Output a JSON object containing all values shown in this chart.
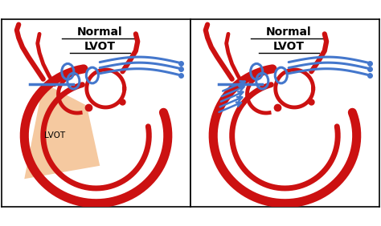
{
  "bg_color": "#ffffff",
  "red": "#cc1111",
  "blue": "#4477cc",
  "lvot_fill": "#f5c9a0",
  "title_line1": "Normal",
  "title_line2": "LVOT",
  "label_lvot": "LVOT",
  "title_fontsize": 10,
  "label_fontsize": 7.5
}
